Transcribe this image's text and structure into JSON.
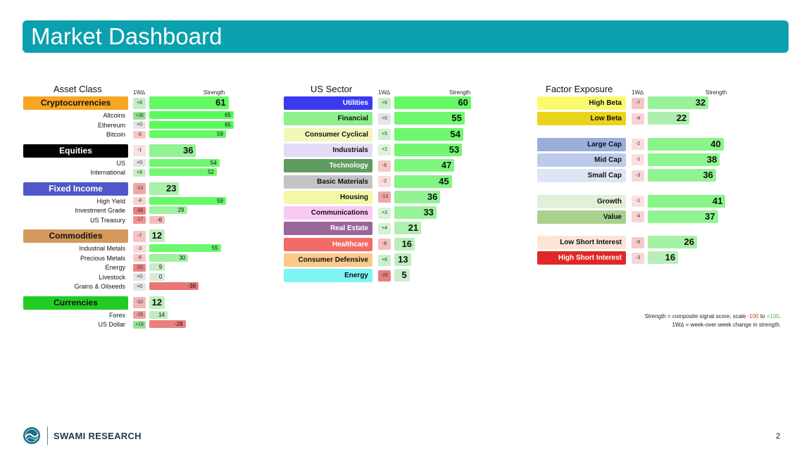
{
  "title": "Market Dashboard",
  "column_headers": {
    "change": "1W∆",
    "strength": "Strength"
  },
  "panels": {
    "asset_class": {
      "title": "Asset Class",
      "groups": [
        {
          "name": "Cryptocurrencies",
          "color": "#f6a623",
          "text_color": "#111111",
          "change": "+8",
          "strength": 61,
          "items": [
            {
              "name": "Altcoins",
              "change": "+36",
              "strength": 65
            },
            {
              "name": "Ethereum",
              "change": "+0",
              "strength": 65
            },
            {
              "name": "Bitcoin",
              "change": "-6",
              "strength": 59
            }
          ]
        },
        {
          "name": "Equities",
          "color": "#000000",
          "text_color": "#ffffff",
          "change": "-1",
          "strength": 36,
          "items": [
            {
              "name": "US",
              "change": "+0",
              "strength": 54
            },
            {
              "name": "International",
              "change": "+8",
              "strength": 52
            }
          ]
        },
        {
          "name": "Fixed Income",
          "color": "#4f57c9",
          "text_color": "#ffffff",
          "change": "-13",
          "strength": 23,
          "items": [
            {
              "name": "High Yield",
              "change": "-4",
              "strength": 59
            },
            {
              "name": "Investment Grade",
              "change": "-38",
              "strength": 29
            },
            {
              "name": "US Treasury",
              "change": "-17",
              "strength": -6
            }
          ]
        },
        {
          "name": "Commodities",
          "color": "#d49a5b",
          "text_color": "#111111",
          "change": "-7",
          "strength": 12,
          "items": [
            {
              "name": "Industrial Metals",
              "change": "-3",
              "strength": 55
            },
            {
              "name": "Precious Metals",
              "change": "-6",
              "strength": 30
            },
            {
              "name": "Energy",
              "change": "-20",
              "strength": 9
            },
            {
              "name": "Livestock",
              "change": "+0",
              "strength": 0
            },
            {
              "name": "Grains & Oilseeds",
              "change": "+0",
              "strength": -38
            }
          ]
        },
        {
          "name": "Currencies",
          "color": "#22cc22",
          "text_color": "#111111",
          "change": "-10",
          "strength": 12,
          "items": [
            {
              "name": "Forex",
              "change": "-15",
              "strength": 14
            },
            {
              "name": "US Dollar",
              "change": "+19",
              "strength": -28
            }
          ]
        }
      ]
    },
    "us_sector": {
      "title": "US Sector",
      "rows": [
        {
          "name": "Utilities",
          "color": "#3a3af0",
          "text_color": "#ffffff",
          "change": "+6",
          "strength": 60
        },
        {
          "name": "Financial",
          "color": "#8df08d",
          "text_color": "#111111",
          "change": "+0",
          "strength": 55
        },
        {
          "name": "Consumer Cyclical",
          "color": "#f2f6b8",
          "text_color": "#111111",
          "change": "+5",
          "strength": 54
        },
        {
          "name": "Industrials",
          "color": "#e4dcf6",
          "text_color": "#111111",
          "change": "+2",
          "strength": 53
        },
        {
          "name": "Technology",
          "color": "#5f9b5f",
          "text_color": "#ffffff",
          "change": "-6",
          "strength": 47
        },
        {
          "name": "Basic Materials",
          "color": "#c4c4c4",
          "text_color": "#111111",
          "change": "-2",
          "strength": 45
        },
        {
          "name": "Housing",
          "color": "#f4f7a6",
          "text_color": "#111111",
          "change": "-13",
          "strength": 36
        },
        {
          "name": "Communications",
          "color": "#f9c9f3",
          "text_color": "#111111",
          "change": "+3",
          "strength": 33
        },
        {
          "name": "Real Estate",
          "color": "#996699",
          "text_color": "#ffffff",
          "change": "+4",
          "strength": 21
        },
        {
          "name": "Healthcare",
          "color": "#f36b66",
          "text_color": "#ffffff",
          "change": "-8",
          "strength": 16
        },
        {
          "name": "Consumer Defensive",
          "color": "#fcc98a",
          "text_color": "#111111",
          "change": "+6",
          "strength": 13
        },
        {
          "name": "Energy",
          "color": "#7ef4f4",
          "text_color": "#111111",
          "change": "-26",
          "strength": 5
        }
      ]
    },
    "factor_exposure": {
      "title": "Factor Exposure",
      "groups": [
        [
          {
            "name": "High Beta",
            "color": "#fafa6e",
            "text_color": "#111111",
            "change": "-7",
            "strength": 32
          },
          {
            "name": "Low Beta",
            "color": "#e8d41a",
            "text_color": "#111111",
            "change": "-4",
            "strength": 22
          }
        ],
        [
          {
            "name": "Large Cap",
            "color": "#9aaedb",
            "text_color": "#111111",
            "change": "-2",
            "strength": 40
          },
          {
            "name": "Mid Cap",
            "color": "#bccbea",
            "text_color": "#111111",
            "change": "-1",
            "strength": 38
          },
          {
            "name": "Small Cap",
            "color": "#dee4f4",
            "text_color": "#111111",
            "change": "-3",
            "strength": 36
          }
        ],
        [
          {
            "name": "Growth",
            "color": "#e2efd9",
            "text_color": "#111111",
            "change": "-1",
            "strength": 41
          },
          {
            "name": "Value",
            "color": "#a9d18e",
            "text_color": "#111111",
            "change": "-4",
            "strength": 37
          }
        ],
        [
          {
            "name": "Low Short Interest",
            "color": "#fce4d6",
            "text_color": "#111111",
            "change": "-6",
            "strength": 26
          },
          {
            "name": "High Short Interest",
            "color": "#e02828",
            "text_color": "#ffffff",
            "change": "-3",
            "strength": 16
          }
        ]
      ]
    }
  },
  "note": {
    "line1_prefix": "Strength = composite signal score, scale ",
    "line1_neg": "-100",
    "line1_mid": " to ",
    "line1_pos": "+100",
    "line1_suffix": ".",
    "line2": "1W∆ = week-over-week change in strength."
  },
  "footer": {
    "brand": "SWAMI RESEARCH",
    "page_number": "2",
    "logo_icon": "globe-wave-logo"
  }
}
